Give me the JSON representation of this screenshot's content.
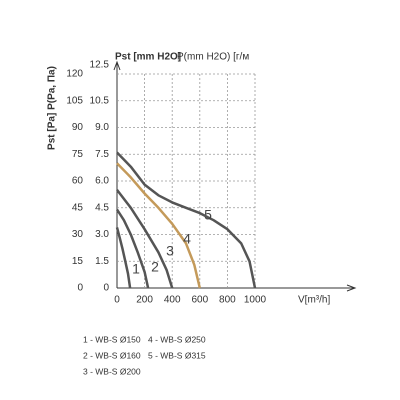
{
  "chart_data": {
    "type": "line",
    "title": "Pst [mm H2O]",
    "subtitle": "P(mm H2O) [г/м",
    "y_label": "Pst [Pa] P(Pa, Па)",
    "x_label": "V[m³/h]",
    "xlim": [
      0,
      1000
    ],
    "xticks": [
      0,
      200,
      400,
      600,
      800,
      1000
    ],
    "ylim": [
      0,
      120
    ],
    "yticks": [
      0,
      15,
      30,
      45,
      60,
      75,
      90,
      105,
      120
    ],
    "y2lim": [
      0,
      12
    ],
    "y2ticks": [
      0,
      1.5,
      {
        "value": 3,
        "label": "3.0"
      },
      4.5,
      {
        "value": 6,
        "label": "6.0"
      },
      7.5,
      {
        "value": 9,
        "label": "9.0"
      },
      10.5,
      12.5
    ],
    "grid": true,
    "series": [
      {
        "name": "1",
        "color": "#555555",
        "x": [
          0,
          20,
          40,
          60,
          80,
          95
        ],
        "values": [
          34,
          28,
          22,
          15,
          8,
          0
        ]
      },
      {
        "name": "2",
        "color": "#555555",
        "x": [
          0,
          50,
          100,
          150,
          200,
          225
        ],
        "values": [
          44,
          38,
          30,
          20,
          9,
          0
        ]
      },
      {
        "name": "3",
        "color": "#555555",
        "x": [
          0,
          100,
          200,
          300,
          360,
          400
        ],
        "values": [
          55,
          45,
          33,
          20,
          10,
          0
        ]
      },
      {
        "name": "4",
        "color": "#c49a5a",
        "x": [
          0,
          100,
          200,
          300,
          400,
          500,
          560,
          600
        ],
        "values": [
          70,
          62,
          53,
          45,
          36,
          25,
          13,
          0
        ]
      },
      {
        "name": "5",
        "color": "#555555",
        "x": [
          0,
          100,
          200,
          300,
          400,
          500,
          600,
          700,
          800,
          900,
          960,
          1000
        ],
        "values": [
          76,
          68,
          58,
          52,
          48,
          45,
          42,
          38,
          33,
          25,
          15,
          0
        ]
      }
    ],
    "legend": [
      "1 - WB-S Ø150",
      "2 - WB-S Ø160",
      "3 - WB-S Ø200",
      "4 - WB-S Ø250",
      "5 - WB-S Ø315"
    ]
  }
}
